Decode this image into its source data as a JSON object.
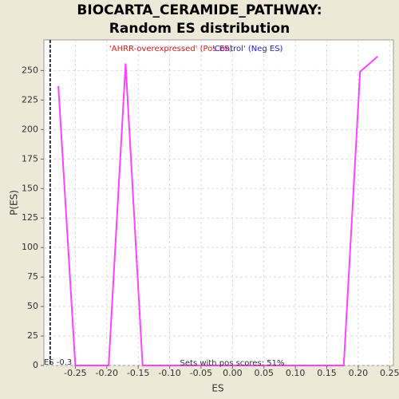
{
  "chart_data": {
    "type": "line",
    "title": "BIOCARTA_CERAMIDE_PATHWAY: Random ES distribution",
    "xlabel": "ES",
    "ylabel": "P(ES)",
    "x": [
      -0.277,
      -0.25,
      -0.197,
      -0.17,
      -0.143,
      0.177,
      0.203,
      0.231
    ],
    "series": [
      {
        "name": "P(ES)",
        "color": "#ff44ff",
        "values": [
          237,
          0,
          0,
          256,
          0,
          0,
          249,
          262
        ]
      }
    ],
    "xlim": [
      -0.3,
      0.256
    ],
    "ylim": [
      0,
      276
    ],
    "xticks": [
      -0.25,
      {
        "value": -0.2,
        "label": "-0.20"
      },
      -0.15,
      {
        "value": -0.1,
        "label": "-0.10"
      },
      -0.05,
      {
        "value": 0,
        "label": "0.00"
      },
      0.05,
      {
        "value": 0.1,
        "label": "0.10"
      },
      0.15,
      {
        "value": 0.2,
        "label": "0.20"
      },
      0.25
    ],
    "yticks": [
      0,
      25,
      50,
      75,
      100,
      125,
      150,
      175,
      200,
      225,
      250
    ],
    "grid": true,
    "pos_label": "'AHRR-overexpressed' (Pos ES)",
    "pos_color": "#cc2222",
    "neg_label": "'Control' (Neg ES)",
    "neg_color": "#2222cc",
    "es_marker": {
      "x": -0.29,
      "label": "ES -0.3"
    },
    "footnote": "Sets with pos scores: 51%"
  }
}
